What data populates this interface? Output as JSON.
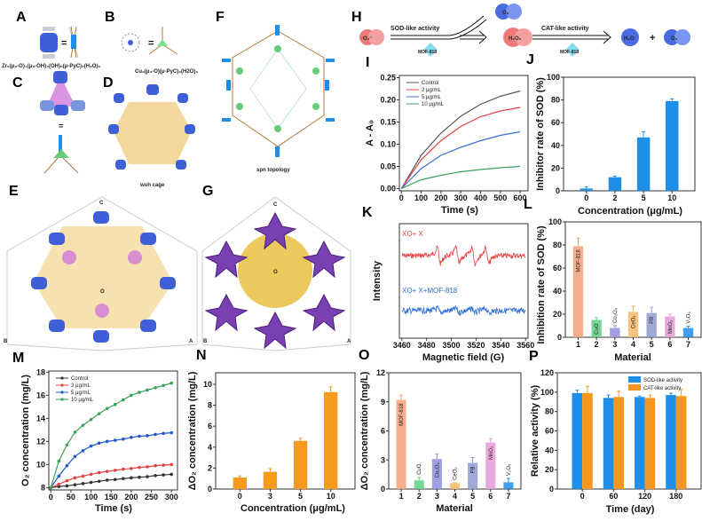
{
  "panel_letters": {
    "A": "A",
    "B": "B",
    "C": "C",
    "D": "D",
    "E": "E",
    "F": "F",
    "G": "G",
    "H": "H",
    "I": "I",
    "J": "J",
    "K": "K",
    "L": "L",
    "M": "M",
    "N": "N",
    "O": "O",
    "P": "P"
  },
  "structure": {
    "formula_a": "Zr₆(μ₃-O)₄(μ₃-OH)₄(OH)₆(μ-PyC)₆(H₂O)₆",
    "formula_b": "Cu₃(μ₃-O)(μ-PyC)₃(H2O)₃",
    "equals": "=",
    "equals_c": "=",
    "wuh_cage": "wuh cage",
    "spn_topology": "spn topology",
    "axis_a": "A",
    "axis_b": "B",
    "axis_c": "C",
    "origin": "O",
    "axis_a2": "A",
    "axis_b2": "B",
    "axis_c2": "C",
    "origin2": "O"
  },
  "scheme": {
    "superoxide": "·O₂⁻",
    "sod_label": "SOD-like activity",
    "cat_label": "CAT-like activity",
    "catalyst1": "MOF-818",
    "catalyst2": "MOF-818",
    "o2_top": "O₂",
    "h2o2": "H₂O₂",
    "h2o": "H₂O",
    "plus": "+",
    "o2_right": "O₂"
  },
  "chart_data": [
    {
      "id": "I",
      "type": "line",
      "xlabel": "Time (s)",
      "ylabel": "A - A₀",
      "xlim": [
        -10,
        640
      ],
      "ylim": [
        -0.005,
        0.255
      ],
      "xticks": [
        "0",
        "100",
        "200",
        "300",
        "400",
        "500",
        "600"
      ],
      "yticks": [
        "0.00",
        "0.05",
        "0.10",
        "0.15",
        "0.20",
        "0.25"
      ],
      "legend": "top-left",
      "x": [
        0,
        100,
        200,
        300,
        400,
        500,
        600
      ],
      "series": [
        {
          "name": "Control",
          "color": "#555555",
          "values": [
            0,
            0.075,
            0.125,
            0.163,
            0.19,
            0.208,
            0.22
          ]
        },
        {
          "name": "2 μg/mL",
          "color": "#e8403f",
          "values": [
            0,
            0.065,
            0.108,
            0.14,
            0.162,
            0.175,
            0.183
          ]
        },
        {
          "name": "5 μg/mL",
          "color": "#3b6fd6",
          "values": [
            0,
            0.045,
            0.075,
            0.093,
            0.108,
            0.12,
            0.128
          ]
        },
        {
          "name": "10 μg/mL",
          "color": "#3aa35a",
          "values": [
            0,
            0.02,
            0.03,
            0.038,
            0.043,
            0.047,
            0.05
          ]
        }
      ]
    },
    {
      "id": "J",
      "type": "bar",
      "xlabel": "Concentration  (μg/mL)",
      "ylabel": "Inhibitor rate of SOD (%)",
      "ylim": [
        0,
        100
      ],
      "categories": [
        "0",
        "2",
        "5",
        "10"
      ],
      "values": [
        2,
        12,
        47,
        79
      ],
      "errors": [
        1.5,
        1,
        5,
        2
      ],
      "color": "#1e8fe8",
      "yticks": [
        "0",
        "20",
        "40",
        "60",
        "80",
        "100"
      ]
    },
    {
      "id": "K",
      "type": "line",
      "xlabel": "Magnetic field  (G)",
      "ylabel": "Intensity",
      "xlim": [
        3458,
        3562
      ],
      "xticks": [
        "3460",
        "3480",
        "3500",
        "3520",
        "3540",
        "3560"
      ],
      "series": [
        {
          "name": "XO+ X",
          "color": "#e8403f",
          "signal_centers": [
            3490,
            3505,
            3518,
            3529
          ]
        },
        {
          "name": "XO+ X+MOF-818",
          "color": "#2f6fd6",
          "signal_centers": [
            3490,
            3505,
            3518,
            3529
          ]
        }
      ]
    },
    {
      "id": "L",
      "type": "bar",
      "xlabel": "Material",
      "ylabel": "Inhibition rate of SOD (%)",
      "ylim": [
        0,
        100
      ],
      "categories": [
        "1",
        "2",
        "3",
        "4",
        "5",
        "6",
        "7"
      ],
      "bar_labels": [
        "MOF-818",
        "CuO",
        "Co₃O₄",
        "CeO₂",
        "PB",
        "MnO₂",
        "V₂O₅"
      ],
      "values": [
        79,
        15,
        8,
        22,
        21,
        18,
        8
      ],
      "errors": [
        7,
        2,
        2,
        5,
        5,
        2,
        1.5
      ],
      "colors": [
        "#f4a07a",
        "#5ecf84",
        "#8f8fd8",
        "#f5b86a",
        "#8e9ad0",
        "#e59ad6",
        "#1e8fe8"
      ],
      "yticks": [
        "0",
        "20",
        "40",
        "60",
        "80",
        "100"
      ]
    },
    {
      "id": "M",
      "type": "line",
      "xlabel": "Time (s)",
      "ylabel": "O₂ concentration (mg/L)",
      "xlim": [
        -5,
        315
      ],
      "ylim": [
        7.8,
        18.1
      ],
      "xticks": [
        "0",
        "50",
        "100",
        "150",
        "200",
        "250",
        "300"
      ],
      "yticks": [
        "8",
        "10",
        "12",
        "14",
        "16",
        "18"
      ],
      "legend": "top-left",
      "x": [
        0,
        20,
        40,
        60,
        80,
        100,
        120,
        140,
        160,
        180,
        200,
        220,
        240,
        260,
        280,
        300
      ],
      "series": [
        {
          "name": "Control",
          "color": "#333333",
          "values": [
            8,
            8.1,
            8.15,
            8.25,
            8.35,
            8.45,
            8.55,
            8.65,
            8.7,
            8.78,
            8.85,
            8.9,
            8.95,
            9.05,
            9.1,
            9.15
          ]
        },
        {
          "name": "3 μg/mL",
          "color": "#e8403f",
          "values": [
            8,
            8.3,
            8.6,
            8.85,
            9.0,
            9.15,
            9.3,
            9.4,
            9.5,
            9.6,
            9.65,
            9.75,
            9.8,
            9.9,
            9.95,
            10.0
          ]
        },
        {
          "name": "5 μg/mL",
          "color": "#2058d0",
          "values": [
            8,
            9.0,
            9.9,
            10.7,
            11.2,
            11.6,
            11.85,
            12.0,
            12.1,
            12.2,
            12.35,
            12.45,
            12.5,
            12.6,
            12.7,
            12.75
          ]
        },
        {
          "name": "10 μg/mL",
          "color": "#3aa35a",
          "values": [
            8,
            10.3,
            11.7,
            12.8,
            13.4,
            13.9,
            14.4,
            14.85,
            15.2,
            15.6,
            16.0,
            16.25,
            16.45,
            16.65,
            16.85,
            17.05
          ]
        }
      ]
    },
    {
      "id": "N",
      "type": "bar",
      "xlabel": "Concentration (μg/mL)",
      "ylabel": "ΔO₂ concentration (mg/L)",
      "ylim": [
        0,
        11.1
      ],
      "categories": [
        "0",
        "3",
        "5",
        "10"
      ],
      "values": [
        1.1,
        1.65,
        4.6,
        9.25
      ],
      "errors": [
        0.15,
        0.3,
        0.25,
        0.5
      ],
      "color": "#f79a1e",
      "yticks": [
        "0",
        "2",
        "4",
        "6",
        "8",
        "10"
      ],
      "ytick_values": [
        0,
        2,
        4,
        6,
        8,
        10
      ]
    },
    {
      "id": "O",
      "type": "bar",
      "xlabel": "Material",
      "ylabel": "ΔO₂ concentration (mg/L)",
      "ylim": [
        0,
        12
      ],
      "categories": [
        "1",
        "2",
        "3",
        "4",
        "5",
        "6",
        "7"
      ],
      "bar_labels": [
        "MOF-818",
        "CuO",
        "Co₃O₄",
        "CeO₂",
        "PB",
        "MnO₂",
        "V₂O₅"
      ],
      "values": [
        9.2,
        0.9,
        3.1,
        0.6,
        2.7,
        4.8,
        0.7
      ],
      "errors": [
        0.5,
        0.3,
        0.5,
        0.05,
        0.55,
        0.4,
        0.4
      ],
      "colors": [
        "#f4a07a",
        "#5ecf84",
        "#8f8fd8",
        "#f5b86a",
        "#8e9ad0",
        "#e59ad6",
        "#1e8fe8"
      ],
      "yticks": [
        "0",
        "3",
        "6",
        "9",
        "12"
      ]
    },
    {
      "id": "P",
      "type": "bar",
      "xlabel": "Time (day)",
      "ylabel": "Relative activity (%)",
      "ylim": [
        0,
        120
      ],
      "categories": [
        "0",
        "60",
        "120",
        "180"
      ],
      "legend": "top-right",
      "series": [
        {
          "name": "SOD-like activity",
          "color": "#1e8fe8",
          "values": [
            99,
            94,
            95,
            97
          ],
          "errors": [
            3,
            3,
            1,
            2
          ]
        },
        {
          "name": "CAT-like activity",
          "color": "#f7961e",
          "values": [
            99,
            95,
            94,
            96
          ],
          "errors": [
            7,
            6,
            3,
            7
          ]
        }
      ],
      "yticks": [
        "0",
        "20",
        "40",
        "60",
        "80",
        "100",
        "120"
      ]
    }
  ]
}
